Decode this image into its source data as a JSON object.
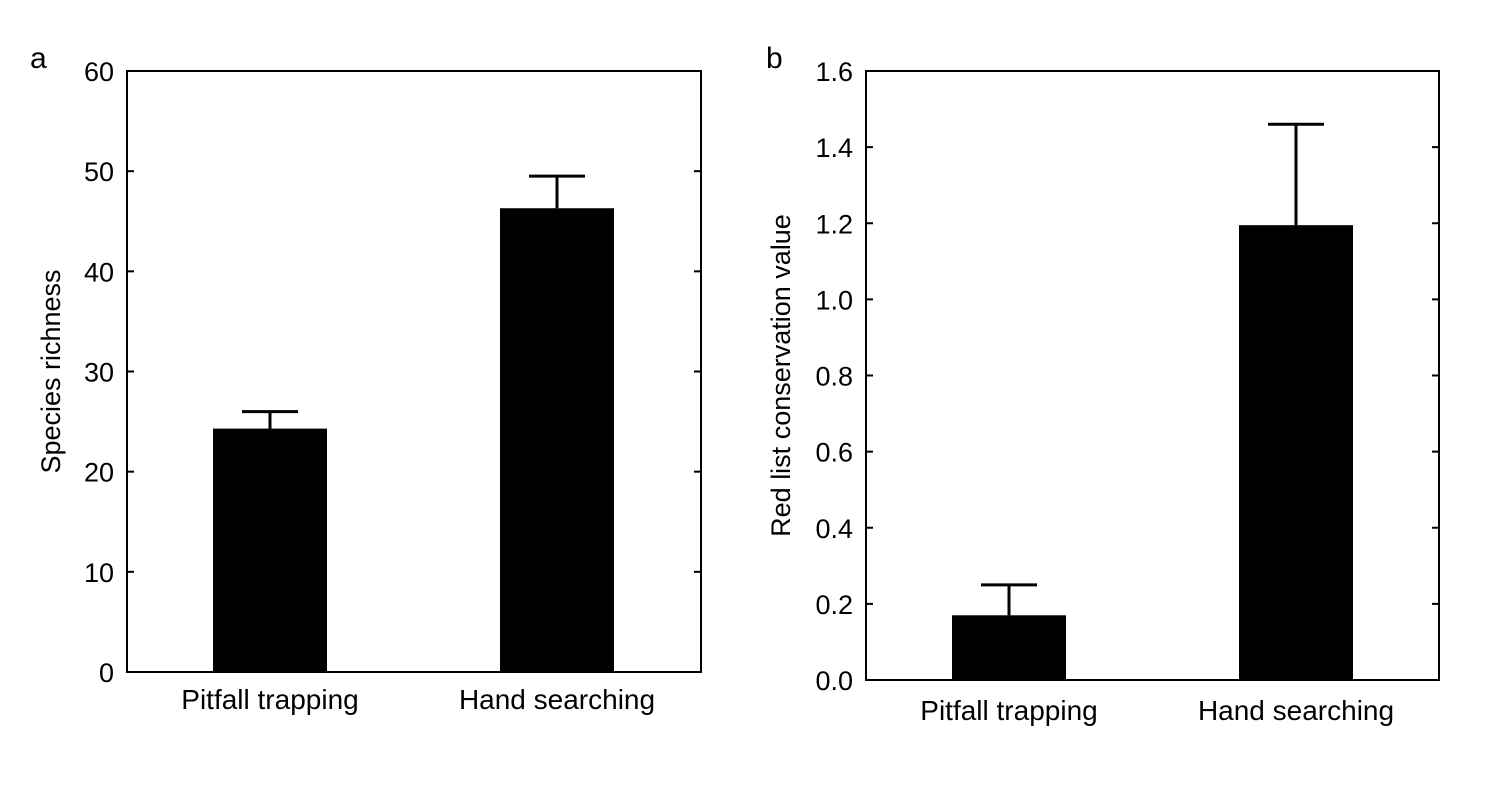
{
  "chart_data": [
    {
      "type": "bar",
      "panel": "a",
      "categories": [
        "Pitfall trapping",
        "Hand searching"
      ],
      "values": [
        24.3,
        46.3
      ],
      "error_upper": [
        26.0,
        49.5
      ],
      "xlabel": "",
      "ylabel": "Species richness",
      "ylim": [
        0,
        60
      ],
      "yticks": [
        0,
        10,
        20,
        30,
        40,
        50,
        60
      ],
      "ytick_labels": [
        "0",
        "10",
        "20",
        "30",
        "40",
        "50",
        "60"
      ],
      "grid": false,
      "bar_color": "#000000"
    },
    {
      "type": "bar",
      "panel": "b",
      "categories": [
        "Pitfall trapping",
        "Hand searching"
      ],
      "values": [
        0.17,
        1.195
      ],
      "error_upper": [
        0.25,
        1.46
      ],
      "xlabel": "",
      "ylabel": "Red list conservation value",
      "ylim": [
        0.0,
        1.6
      ],
      "yticks": [
        0.0,
        0.2,
        0.4,
        0.6,
        0.8,
        1.0,
        1.2,
        1.4,
        1.6
      ],
      "ytick_labels": [
        "0.0",
        "0.2",
        "0.4",
        "0.6",
        "0.8",
        "1.0",
        "1.2",
        "1.4",
        "1.6"
      ],
      "grid": false,
      "bar_color": "#000000"
    }
  ]
}
